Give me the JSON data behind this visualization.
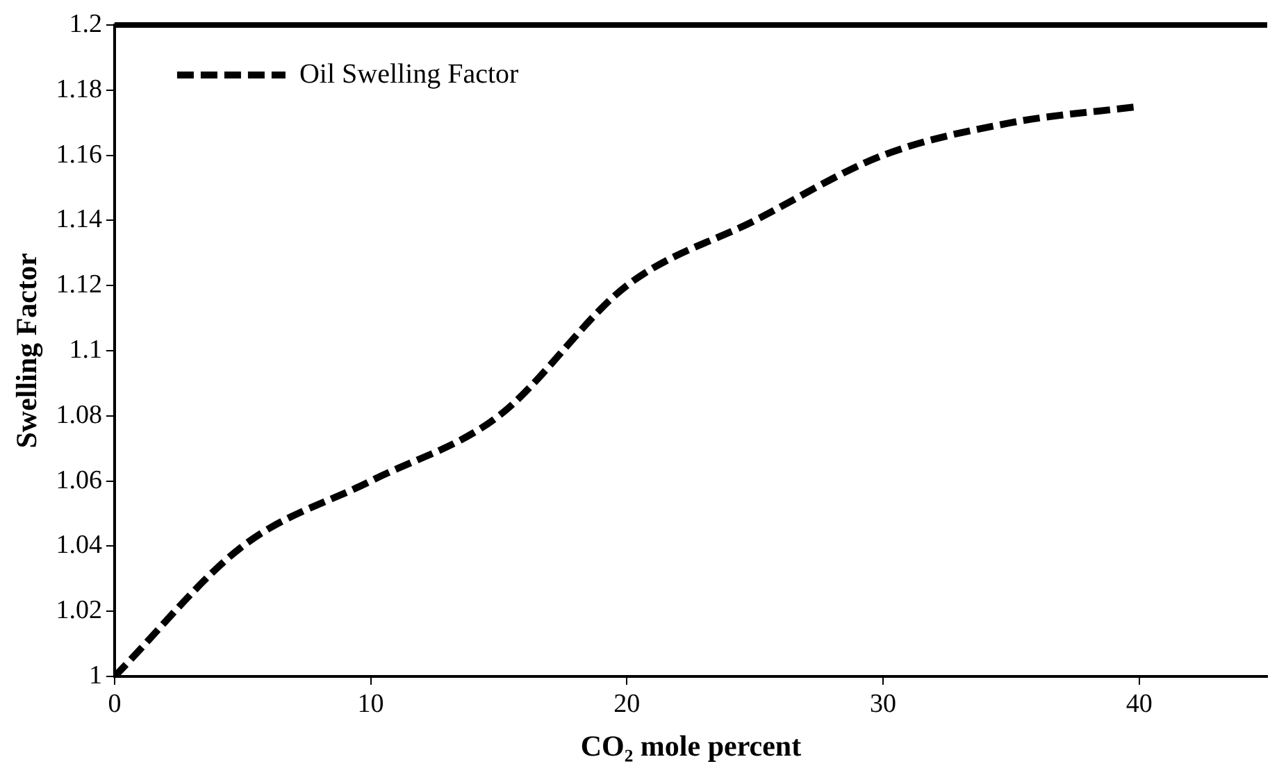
{
  "chart_data": {
    "type": "line",
    "xlabel": "CO₂ mole percent",
    "ylabel": "Swelling Factor",
    "x": [
      0,
      5,
      10,
      15,
      20,
      25,
      30,
      35,
      40
    ],
    "series": [
      {
        "name": "Oil Swelling Factor",
        "color": "#000000",
        "values": [
          1,
          1.04,
          1.06,
          1.08,
          1.12,
          1.14,
          1.16,
          1.17,
          1.175
        ]
      }
    ],
    "xlim": [
      0,
      45
    ],
    "xticks": [
      0,
      10,
      20,
      30,
      40
    ],
    "ylim": [
      1,
      1.2
    ],
    "yticks": [
      1,
      1.02,
      1.04,
      1.06,
      1.08,
      1.1,
      1.12,
      1.14,
      1.16,
      1.18,
      1.2
    ],
    "grid": false,
    "legend": "top left",
    "marker": "none",
    "line_style": "dashed"
  }
}
